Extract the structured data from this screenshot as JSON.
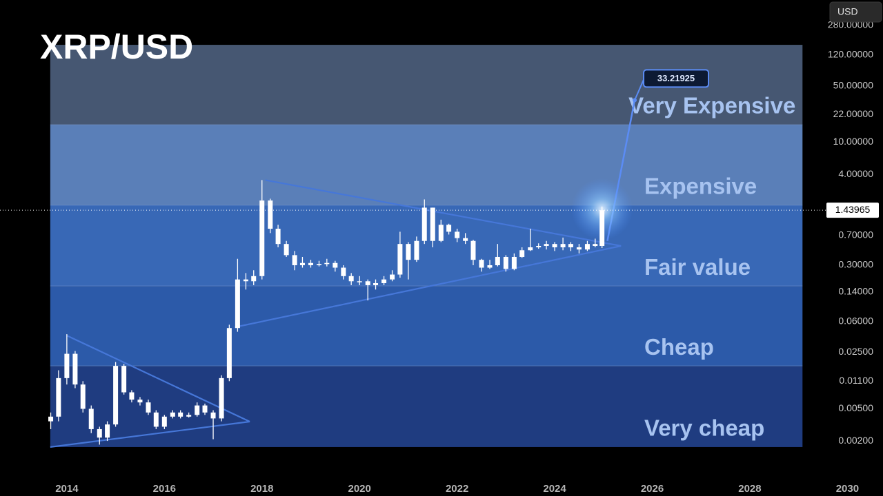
{
  "chart_data": {
    "type": "candlestick",
    "title": "XRP/USD",
    "currency_button": "USD",
    "log_scale": true,
    "xlim": [
      2012.63,
      2030.73
    ],
    "ylim": [
      0.00075,
      578
    ],
    "xticks": [
      2014,
      2016,
      2018,
      2020,
      2022,
      2024,
      2026,
      2028,
      2030
    ],
    "yticks": [
      {
        "value": 280,
        "label": "280.00000"
      },
      {
        "value": 120,
        "label": "120.00000"
      },
      {
        "value": 50,
        "label": "50.00000"
      },
      {
        "value": 22,
        "label": "22.00000"
      },
      {
        "value": 10,
        "label": "10.00000"
      },
      {
        "value": 4,
        "label": "4.00000"
      },
      {
        "value": 0.7,
        "label": "0.70000"
      },
      {
        "value": 0.3,
        "label": "0.30000"
      },
      {
        "value": 0.14,
        "label": "0.14000"
      },
      {
        "value": 0.06,
        "label": "0.06000"
      },
      {
        "value": 0.025,
        "label": "0.02500"
      },
      {
        "value": 0.011,
        "label": "0.01100"
      },
      {
        "value": 0.005,
        "label": "0.00500"
      },
      {
        "value": 0.002,
        "label": "0.00200"
      }
    ],
    "candle_color": "#ffffff",
    "x": [
      2013.67,
      2013.83,
      2014.0,
      2014.17,
      2014.33,
      2014.5,
      2014.67,
      2014.83,
      2015.0,
      2015.17,
      2015.33,
      2015.5,
      2015.67,
      2015.83,
      2016.0,
      2016.17,
      2016.33,
      2016.5,
      2016.67,
      2016.83,
      2017.0,
      2017.17,
      2017.33,
      2017.5,
      2017.67,
      2017.83,
      2018.0,
      2018.17,
      2018.33,
      2018.5,
      2018.67,
      2018.83,
      2019.0,
      2019.17,
      2019.33,
      2019.5,
      2019.67,
      2019.83,
      2020.0,
      2020.17,
      2020.33,
      2020.5,
      2020.67,
      2020.83,
      2021.0,
      2021.17,
      2021.33,
      2021.5,
      2021.67,
      2021.83,
      2022.0,
      2022.17,
      2022.33,
      2022.5,
      2022.67,
      2022.83,
      2023.0,
      2023.17,
      2023.33,
      2023.5,
      2023.67,
      2023.83,
      2024.0,
      2024.17,
      2024.33,
      2024.5,
      2024.67,
      2024.83,
      2024.97
    ],
    "open": [
      0.0035,
      0.004,
      0.012,
      0.024,
      0.01,
      0.005,
      0.0028,
      0.0022,
      0.0032,
      0.017,
      0.008,
      0.0065,
      0.006,
      0.0045,
      0.003,
      0.004,
      0.0045,
      0.004,
      0.0042,
      0.0055,
      0.0045,
      0.0038,
      0.012,
      0.05,
      0.2,
      0.19,
      0.22,
      1.9,
      0.85,
      0.55,
      0.4,
      0.3,
      0.32,
      0.3,
      0.31,
      0.32,
      0.28,
      0.22,
      0.19,
      0.19,
      0.17,
      0.18,
      0.2,
      0.23,
      0.55,
      0.35,
      0.6,
      1.55,
      0.6,
      0.95,
      0.78,
      0.65,
      0.6,
      0.35,
      0.28,
      0.3,
      0.38,
      0.27,
      0.38,
      0.46,
      0.5,
      0.52,
      0.55,
      0.5,
      0.55,
      0.5,
      0.47,
      0.55,
      0.52
    ],
    "high": [
      0.0045,
      0.015,
      0.042,
      0.026,
      0.011,
      0.0055,
      0.003,
      0.0035,
      0.019,
      0.018,
      0.0085,
      0.007,
      0.0065,
      0.0048,
      0.0042,
      0.0048,
      0.0048,
      0.0045,
      0.006,
      0.0058,
      0.0048,
      0.013,
      0.055,
      0.36,
      0.24,
      0.26,
      3.4,
      2.0,
      0.95,
      0.6,
      0.45,
      0.38,
      0.35,
      0.34,
      0.36,
      0.34,
      0.3,
      0.24,
      0.22,
      0.2,
      0.2,
      0.22,
      0.26,
      0.78,
      0.58,
      0.68,
      1.96,
      1.55,
      1.1,
      0.98,
      0.85,
      0.75,
      0.62,
      0.36,
      0.35,
      0.55,
      0.4,
      0.42,
      0.5,
      0.85,
      0.56,
      0.6,
      0.58,
      0.66,
      0.58,
      0.55,
      0.6,
      0.64,
      1.6
    ],
    "low": [
      0.0028,
      0.0035,
      0.01,
      0.009,
      0.0045,
      0.0025,
      0.0018,
      0.002,
      0.003,
      0.0075,
      0.006,
      0.0055,
      0.0042,
      0.0028,
      0.0028,
      0.0038,
      0.0038,
      0.0039,
      0.004,
      0.0042,
      0.0021,
      0.0035,
      0.011,
      0.045,
      0.15,
      0.17,
      0.2,
      0.75,
      0.5,
      0.38,
      0.26,
      0.28,
      0.28,
      0.29,
      0.29,
      0.25,
      0.2,
      0.17,
      0.17,
      0.11,
      0.15,
      0.17,
      0.19,
      0.21,
      0.2,
      0.33,
      0.55,
      0.5,
      0.58,
      0.72,
      0.58,
      0.55,
      0.3,
      0.25,
      0.27,
      0.29,
      0.25,
      0.26,
      0.37,
      0.45,
      0.48,
      0.47,
      0.45,
      0.46,
      0.45,
      0.42,
      0.45,
      0.5,
      0.49
    ],
    "close": [
      0.004,
      0.012,
      0.024,
      0.01,
      0.005,
      0.0028,
      0.0022,
      0.0032,
      0.017,
      0.008,
      0.0065,
      0.006,
      0.0045,
      0.003,
      0.004,
      0.0045,
      0.004,
      0.0042,
      0.0055,
      0.0045,
      0.0038,
      0.012,
      0.05,
      0.2,
      0.19,
      0.22,
      1.9,
      0.85,
      0.55,
      0.4,
      0.3,
      0.32,
      0.3,
      0.31,
      0.32,
      0.28,
      0.22,
      0.19,
      0.19,
      0.17,
      0.18,
      0.2,
      0.23,
      0.55,
      0.35,
      0.6,
      1.55,
      0.6,
      0.95,
      0.78,
      0.65,
      0.6,
      0.35,
      0.28,
      0.3,
      0.38,
      0.27,
      0.38,
      0.46,
      0.5,
      0.52,
      0.55,
      0.5,
      0.55,
      0.5,
      0.47,
      0.55,
      0.52,
      1.43965
    ],
    "band_x": [
      2013.66,
      2029.08
    ],
    "bands": [
      {
        "name": "Very cheap",
        "color": "#1f3c80",
        "from": 0.00168,
        "to": 0.017
      },
      {
        "name": "Cheap",
        "color": "#2c5aa9",
        "from": 0.017,
        "to": 0.166
      },
      {
        "name": "Fair value",
        "color": "#3868b6",
        "from": 0.166,
        "to": 1.66
      },
      {
        "name": "Expensive",
        "color": "#5a7fb8",
        "from": 1.66,
        "to": 16.5
      },
      {
        "name": "Very Expensive",
        "color": "#465772",
        "from": 16.5,
        "to": 161
      }
    ],
    "trendlines": [
      {
        "x": [
          2013.66,
          2017.75
        ],
        "y": [
          0.00168,
          0.00347
        ],
        "color": "#4677d8"
      },
      {
        "x": [
          2014.0,
          2017.75
        ],
        "y": [
          0.0404,
          0.00347
        ],
        "color": "#4677d8"
      },
      {
        "x": [
          2018.07,
          2025.36
        ],
        "y": [
          3.4,
          0.52
        ],
        "color": "#4677d8"
      },
      {
        "x": [
          2017.44,
          2025.36
        ],
        "y": [
          0.0512,
          0.52
        ],
        "color": "#4677d8"
      }
    ],
    "projection": {
      "x": [
        2025.08,
        2025.64
      ],
      "y": [
        0.6,
        33.21925
      ],
      "color": "#5b8cf5"
    }
  }
}
